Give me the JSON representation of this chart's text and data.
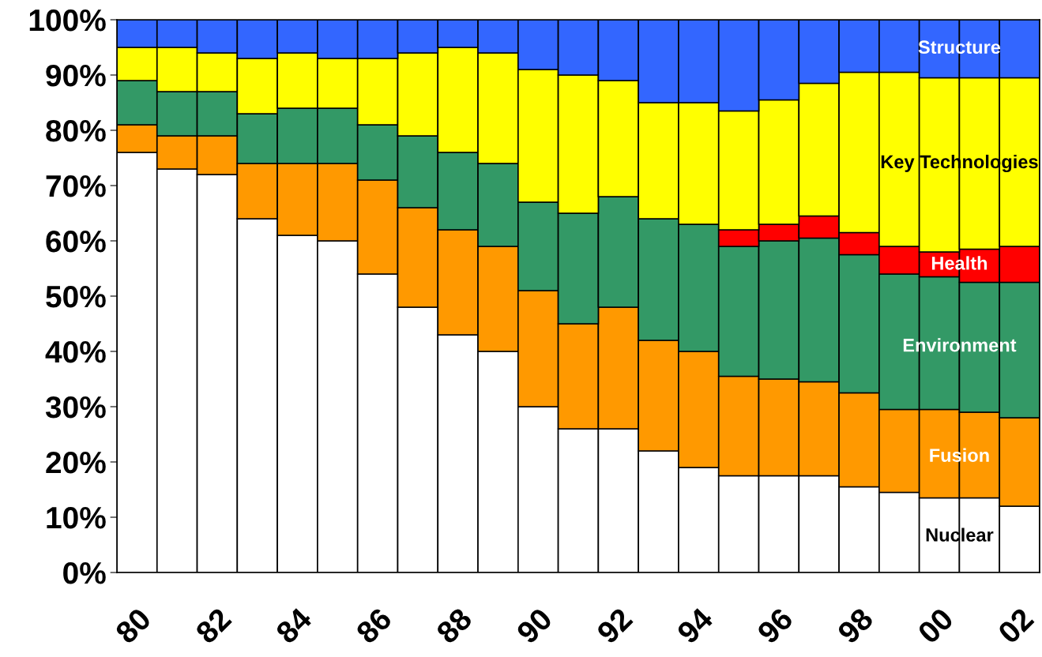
{
  "chart_data": {
    "type": "bar",
    "stacked": true,
    "legend": false,
    "grid": false,
    "categories": [
      "80",
      null,
      "82",
      null,
      "84",
      null,
      "86",
      null,
      "88",
      null,
      "90",
      null,
      "92",
      null,
      "94",
      null,
      "96",
      null,
      "98",
      null,
      "00",
      null,
      "02"
    ],
    "ylim": [
      0,
      100
    ],
    "yticks": [
      {
        "value": 0,
        "label": "0%"
      },
      {
        "value": 10,
        "label": "10%"
      },
      {
        "value": 20,
        "label": "20%"
      },
      {
        "value": 30,
        "label": "30%"
      },
      {
        "value": 40,
        "label": "40%"
      },
      {
        "value": 50,
        "label": "50%"
      },
      {
        "value": 60,
        "label": "60%"
      },
      {
        "value": 70,
        "label": "70%"
      },
      {
        "value": 80,
        "label": "80%"
      },
      {
        "value": 90,
        "label": "90%"
      },
      {
        "value": 100,
        "label": "100%"
      }
    ],
    "series": [
      {
        "name": "Nuclear",
        "color": "#ffffff",
        "values": [
          76,
          73,
          72,
          64,
          61,
          60,
          54,
          48,
          43,
          40,
          30,
          26,
          26,
          22,
          19,
          17.5,
          17.5,
          17.5,
          15.5,
          14.5,
          13.5,
          13.5,
          12
        ]
      },
      {
        "name": "Fusion",
        "color": "#ff9900",
        "values": [
          5,
          6,
          7,
          10,
          13,
          14,
          17,
          18,
          19,
          19,
          21,
          19,
          22,
          20,
          21,
          18,
          17.5,
          17,
          17,
          15,
          16,
          15.5,
          16
        ]
      },
      {
        "name": "Environment",
        "color": "#339966",
        "values": [
          8,
          8,
          8,
          9,
          10,
          10,
          10,
          13,
          14,
          15,
          16,
          20,
          20,
          22,
          23,
          23.5,
          25,
          26,
          25,
          24.5,
          24,
          23.5,
          24.5
        ]
      },
      {
        "name": "Health",
        "color": "#ff0000",
        "values": [
          0,
          0,
          0,
          0,
          0,
          0,
          0,
          0,
          0,
          0,
          0,
          0,
          0,
          0,
          0,
          3,
          3,
          4,
          4,
          5,
          4.5,
          6,
          6.5
        ]
      },
      {
        "name": "Key Technologies",
        "color": "#ffff00",
        "values": [
          6,
          8,
          7,
          10,
          10,
          9,
          12,
          15,
          19,
          20,
          24,
          25,
          21,
          21,
          22,
          21.5,
          22.5,
          24,
          29,
          31.5,
          31.5,
          31,
          30.5
        ]
      },
      {
        "name": "Structure",
        "color": "#3366ff",
        "values": [
          5,
          5,
          6,
          7,
          6,
          7,
          7,
          6,
          5,
          6,
          9,
          10,
          11,
          15,
          15,
          16.5,
          14.5,
          11.5,
          9.5,
          9.5,
          10.5,
          10.5,
          10.5
        ]
      }
    ]
  }
}
